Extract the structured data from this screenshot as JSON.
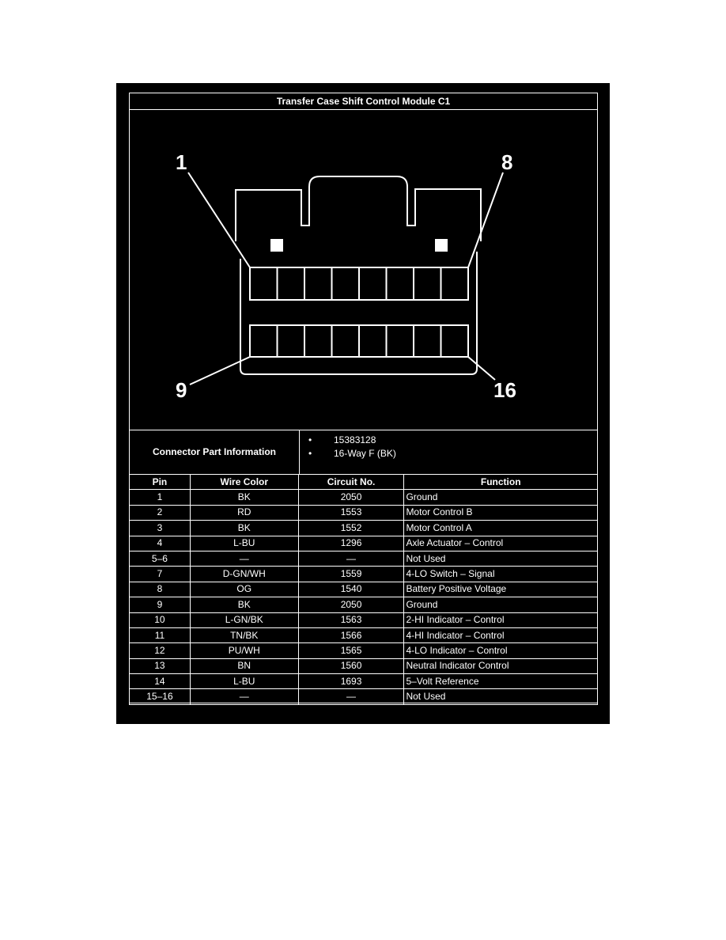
{
  "title": "Transfer Case Shift Control Module C1",
  "diagram": {
    "pin_labels": {
      "top_left": "1",
      "top_right": "8",
      "bottom_left": "9",
      "bottom_right": "16"
    }
  },
  "connector_info": {
    "label": "Connector Part Information",
    "items": [
      "15383128",
      "16-Way F (BK)"
    ]
  },
  "table": {
    "headers": [
      "Pin",
      "Wire Color",
      "Circuit No.",
      "Function"
    ],
    "rows": [
      [
        "1",
        "BK",
        "2050",
        "Ground"
      ],
      [
        "2",
        "RD",
        "1553",
        "Motor Control B"
      ],
      [
        "3",
        "BK",
        "1552",
        "Motor Control A"
      ],
      [
        "4",
        "L-BU",
        "1296",
        "Axle Actuator – Control"
      ],
      [
        "5–6",
        "—",
        "—",
        "Not Used"
      ],
      [
        "7",
        "D-GN/WH",
        "1559",
        "4-LO Switch – Signal"
      ],
      [
        "8",
        "OG",
        "1540",
        "Battery Positive Voltage"
      ],
      [
        "9",
        "BK",
        "2050",
        "Ground"
      ],
      [
        "10",
        "L-GN/BK",
        "1563",
        "2-HI Indicator – Control"
      ],
      [
        "11",
        "TN/BK",
        "1566",
        "4-HI Indicator – Control"
      ],
      [
        "12",
        "PU/WH",
        "1565",
        "4-LO Indicator – Control"
      ],
      [
        "13",
        "BN",
        "1560",
        "Neutral Indicator Control"
      ],
      [
        "14",
        "L-BU",
        "1693",
        "5–Volt Reference"
      ],
      [
        "15–16",
        "—",
        "—",
        "Not Used"
      ]
    ]
  }
}
